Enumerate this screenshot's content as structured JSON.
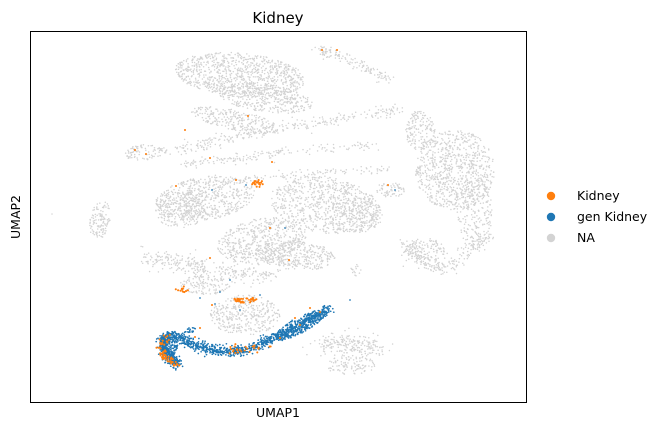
{
  "chart_data": {
    "type": "scatter",
    "title": "Kidney",
    "xlabel": "UMAP1",
    "ylabel": "UMAP2",
    "xticks": "none",
    "yticks": "none",
    "grid": false,
    "legend_position": "right",
    "series": [
      {
        "name": "NA",
        "color": "#d3d3d3",
        "draw_order": 0
      },
      {
        "name": "gen Kidney",
        "color": "#1f77b4",
        "draw_order": 1
      },
      {
        "name": "Kidney",
        "color": "#ff7f0e",
        "draw_order": 2
      }
    ],
    "legend_order": [
      "Kidney",
      "gen Kidney",
      "NA"
    ]
  }
}
